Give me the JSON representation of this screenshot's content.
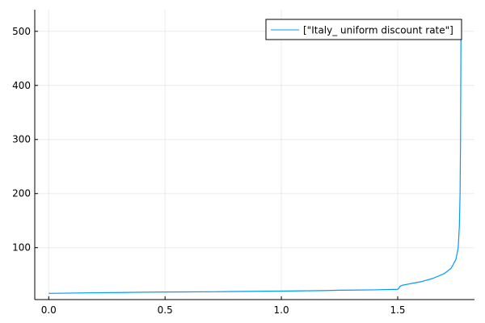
{
  "chart_data": {
    "type": "line",
    "title": "",
    "xlabel": "",
    "ylabel": "",
    "xlim": [
      -0.06,
      1.83
    ],
    "ylim": [
      4,
      540
    ],
    "xticks": [
      0.0,
      0.5,
      1.0,
      1.5
    ],
    "xtick_labels": [
      "0.0",
      "0.5",
      "1.0",
      "1.5"
    ],
    "yticks": [
      100,
      200,
      300,
      400,
      500
    ],
    "ytick_labels": [
      "100",
      "200",
      "300",
      "400",
      "500"
    ],
    "grid": true,
    "legend_position": "top-right",
    "series": [
      {
        "name": "[\"Italy_ uniform discount rate\"]",
        "color": "#009AFA",
        "points": [
          [
            0.0,
            15.5
          ],
          [
            0.1,
            16.0
          ],
          [
            0.2,
            16.6
          ],
          [
            0.3,
            17.1
          ],
          [
            0.4,
            17.6
          ],
          [
            0.5,
            18.0
          ],
          [
            0.6,
            18.2
          ],
          [
            0.7,
            18.5
          ],
          [
            0.8,
            18.9
          ],
          [
            0.9,
            19.3
          ],
          [
            1.0,
            19.7
          ],
          [
            1.1,
            20.2
          ],
          [
            1.2,
            20.8
          ],
          [
            1.25,
            21.3
          ],
          [
            1.3,
            21.5
          ],
          [
            1.4,
            22.0
          ],
          [
            1.5,
            23.0
          ],
          [
            1.505,
            25.0
          ],
          [
            1.51,
            28.5
          ],
          [
            1.52,
            30.5
          ],
          [
            1.55,
            33.0
          ],
          [
            1.6,
            37.0
          ],
          [
            1.65,
            43.0
          ],
          [
            1.7,
            52.0
          ],
          [
            1.73,
            62.0
          ],
          [
            1.75,
            78.0
          ],
          [
            1.76,
            100.0
          ],
          [
            1.765,
            140.0
          ],
          [
            1.768,
            200.0
          ],
          [
            1.77,
            300.0
          ],
          [
            1.771,
            400.0
          ],
          [
            1.772,
            520.0
          ]
        ]
      }
    ]
  }
}
